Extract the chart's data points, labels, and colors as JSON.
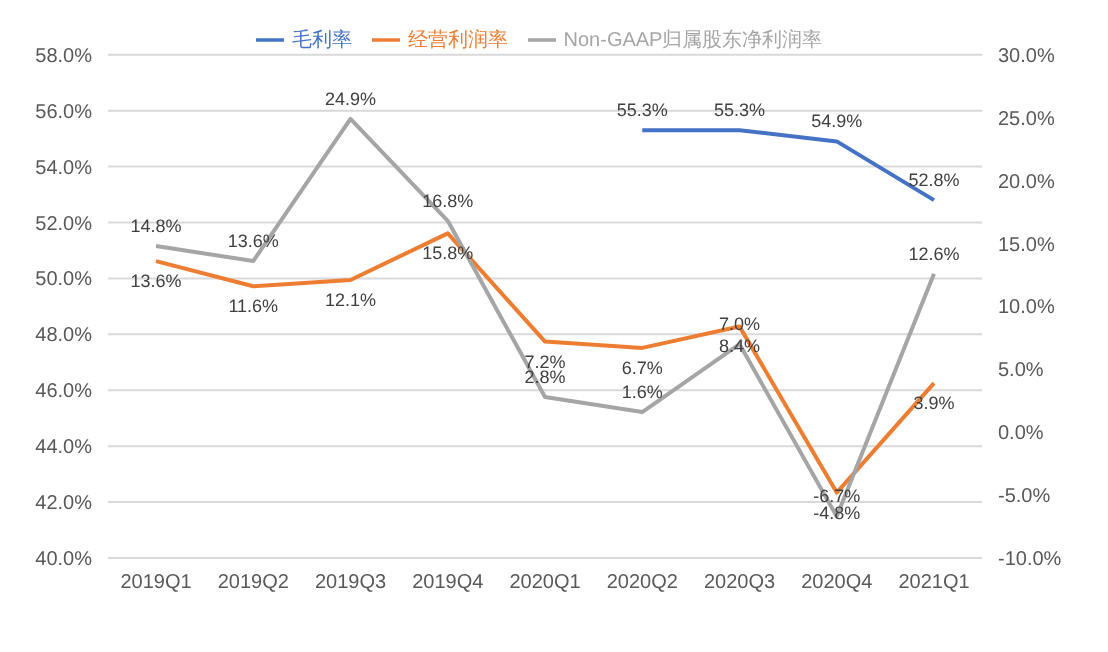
{
  "chart_data": {
    "type": "line",
    "categories": [
      "2019Q1",
      "2019Q2",
      "2019Q3",
      "2019Q4",
      "2020Q1",
      "2020Q2",
      "2020Q3",
      "2020Q4",
      "2021Q1"
    ],
    "series": [
      {
        "name": "毛利率",
        "color": "#4472c4",
        "values": [
          null,
          null,
          null,
          null,
          null,
          55.3,
          55.3,
          54.9,
          52.8
        ],
        "value_labels": [
          null,
          null,
          null,
          null,
          null,
          "55.3%",
          "55.3%",
          "54.9%",
          "52.8%"
        ]
      },
      {
        "name": "经营利润率",
        "color": "#ed7d31",
        "axis": "y2",
        "values": [
          13.6,
          11.6,
          12.1,
          15.8,
          7.2,
          6.7,
          8.4,
          -4.8,
          3.9
        ],
        "value_labels": [
          "13.6%",
          "11.6%",
          "12.1%",
          "15.8%",
          "7.2%",
          "6.7%",
          "8.4%",
          "-4.8%",
          "3.9%"
        ]
      },
      {
        "name": "Non-GAAP归属股东净利润率",
        "color": "#a5a5a5",
        "axis": "y2",
        "values": [
          14.8,
          13.6,
          24.9,
          16.8,
          2.8,
          1.6,
          7.0,
          -6.7,
          12.6
        ],
        "value_labels": [
          "14.8%",
          "13.6%",
          "24.9%",
          "16.8%",
          "2.8%",
          "1.6%",
          "7.0%",
          "-6.7%",
          "12.6%"
        ]
      }
    ],
    "ylim": [
      40,
      58
    ],
    "yticks": [
      {
        "value": 40,
        "label": "40.0%"
      },
      {
        "value": 42,
        "label": "42.0%"
      },
      {
        "value": 44,
        "label": "44.0%"
      },
      {
        "value": 46,
        "label": "46.0%"
      },
      {
        "value": 48,
        "label": "48.0%"
      },
      {
        "value": 50,
        "label": "50.0%"
      },
      {
        "value": 52,
        "label": "52.0%"
      },
      {
        "value": 54,
        "label": "54.0%"
      },
      {
        "value": 56,
        "label": "56.0%"
      },
      {
        "value": 58,
        "label": "58.0%"
      }
    ],
    "y2lim": [
      -10,
      30
    ],
    "y2ticks": [
      {
        "value": -10,
        "label": "-10.0%"
      },
      {
        "value": -5,
        "label": "-5.0%"
      },
      {
        "value": 0,
        "label": "0.0%"
      },
      {
        "value": 5,
        "label": "5.0%"
      },
      {
        "value": 10,
        "label": "10.0%"
      },
      {
        "value": 15,
        "label": "15.0%"
      },
      {
        "value": 20,
        "label": "20.0%"
      },
      {
        "value": 25,
        "label": "25.0%"
      },
      {
        "value": 30,
        "label": "30.0%"
      }
    ],
    "grid": "y",
    "legend": "top",
    "marker": "none",
    "line_style": "solid"
  }
}
